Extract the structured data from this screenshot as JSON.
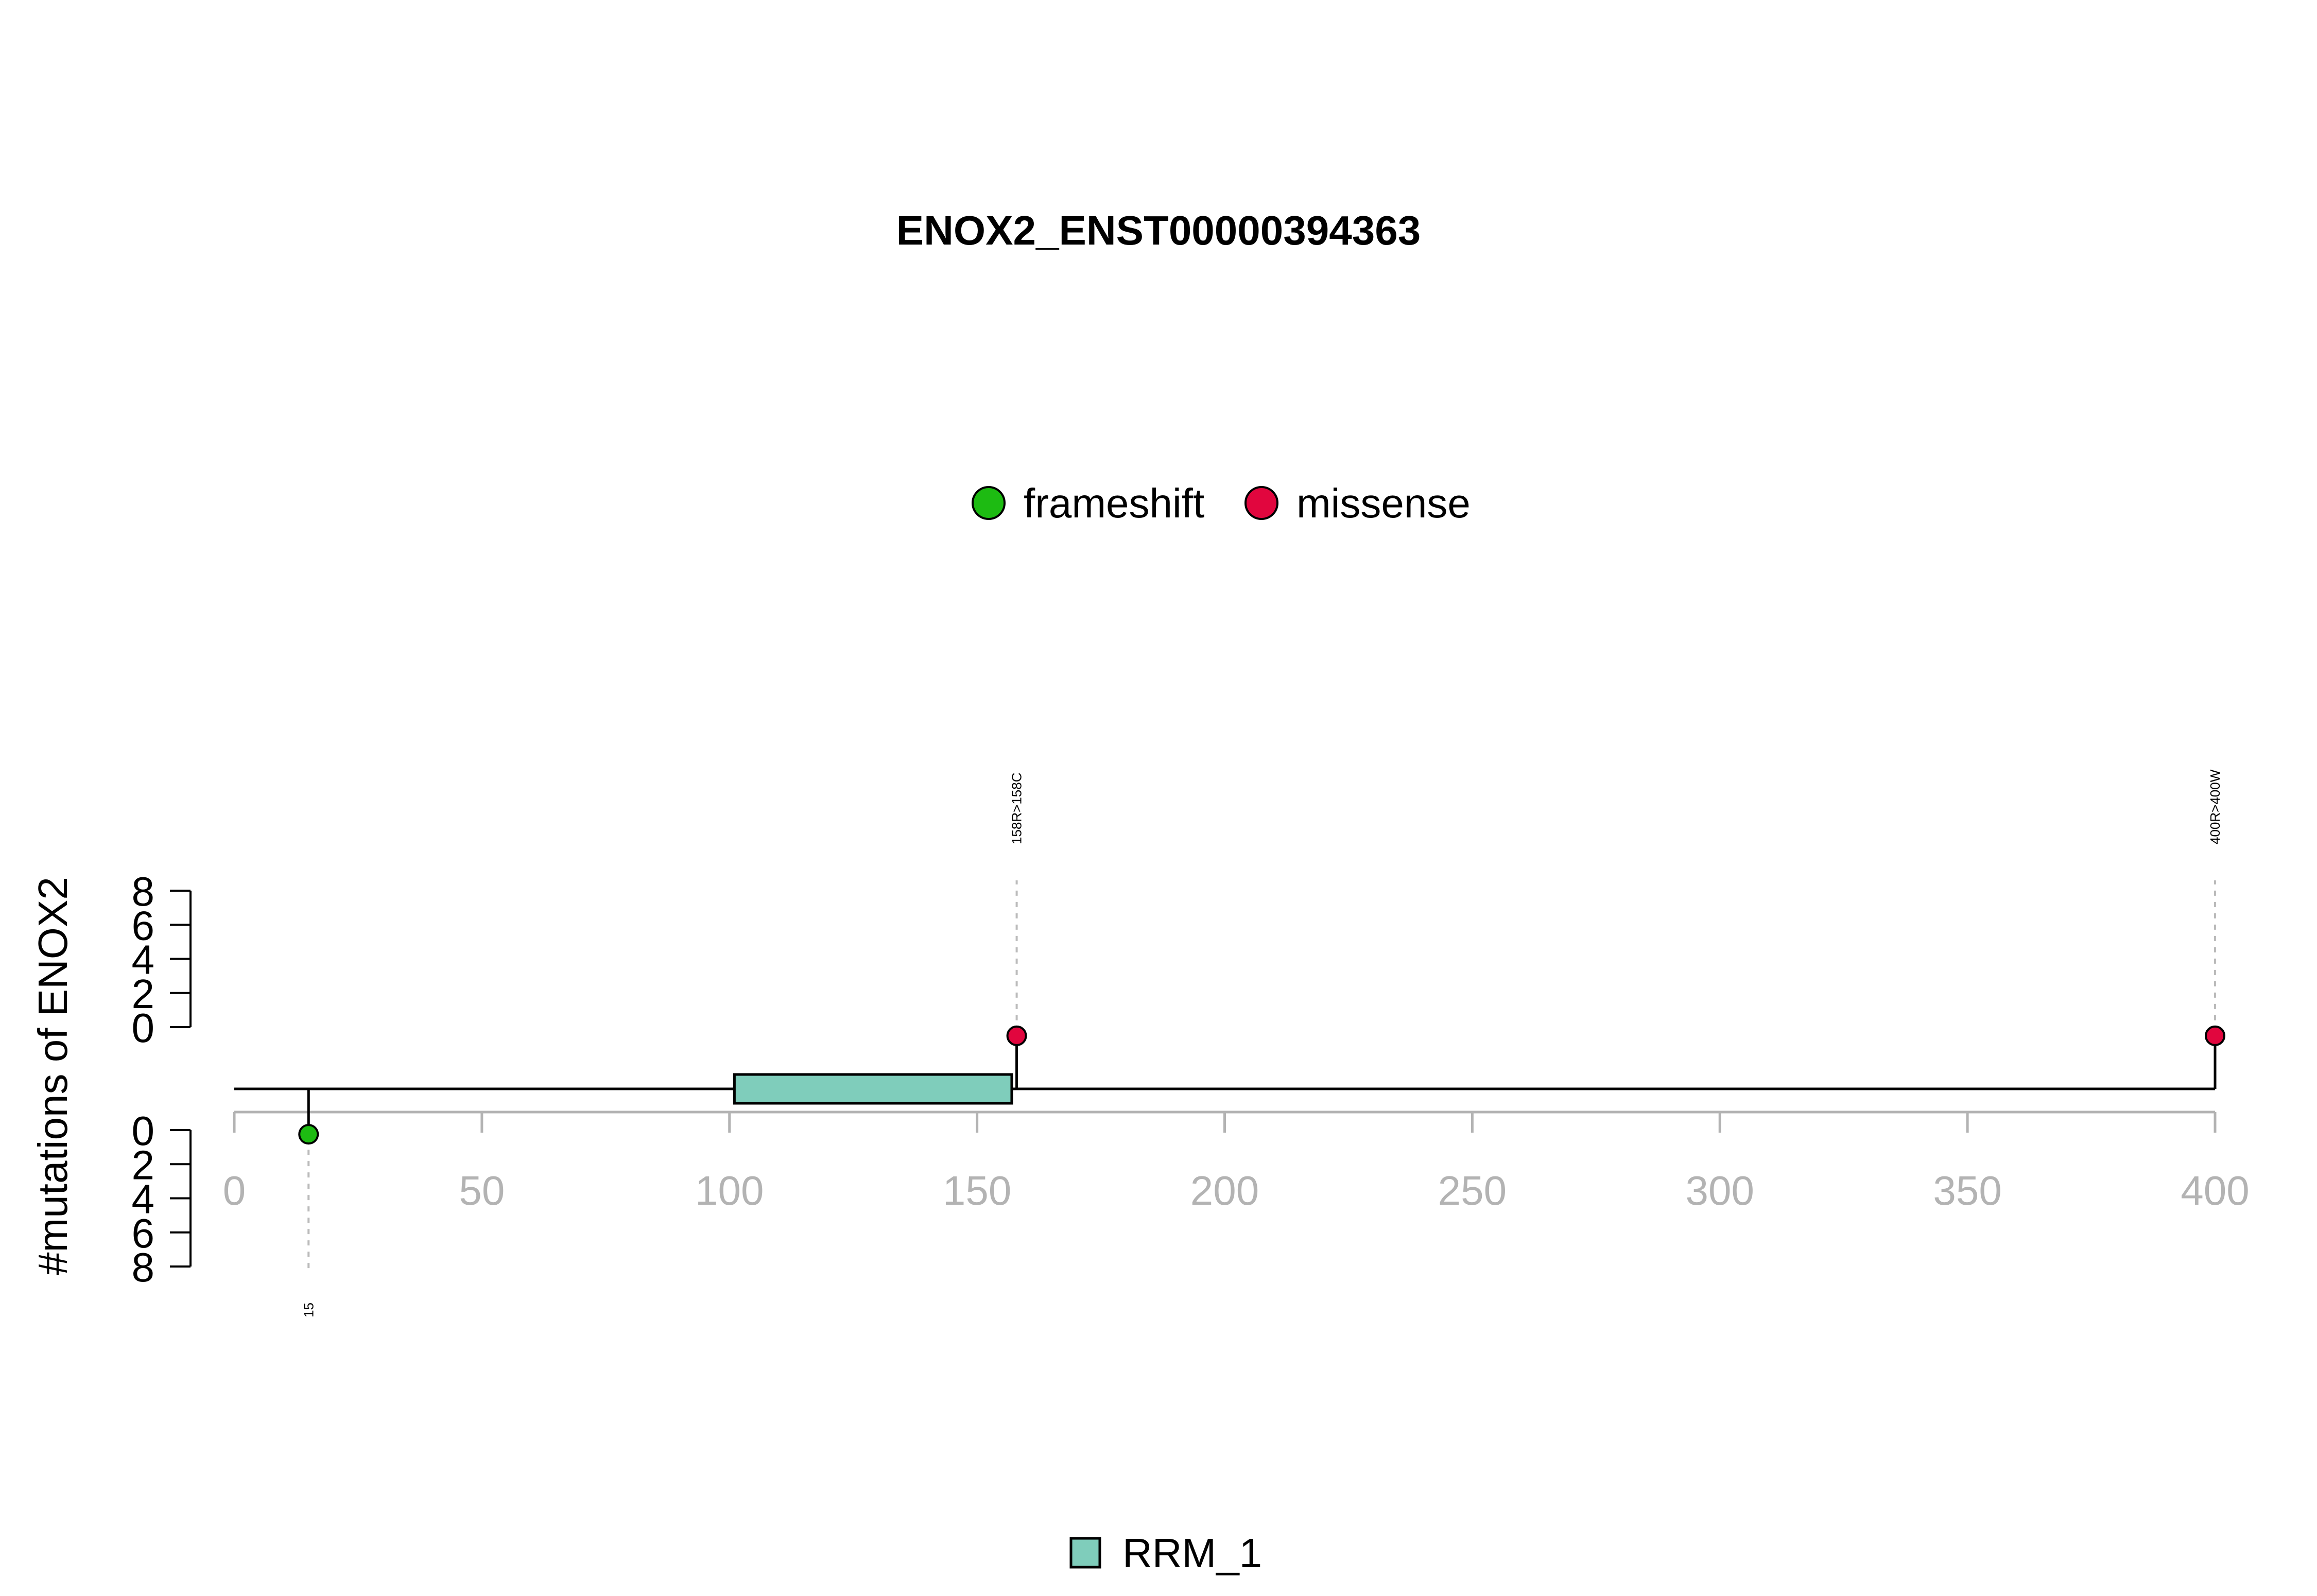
{
  "chart_data": {
    "type": "lollipop",
    "title": "ENOX2_ENST00000394363",
    "ylabel": "#mutations of ENOX2",
    "protein_length": 400,
    "xlim": [
      0,
      400
    ],
    "xticks": [
      0,
      50,
      100,
      150,
      200,
      250,
      300,
      350,
      400
    ],
    "ylim": [
      0,
      8
    ],
    "yticks": [
      0,
      2,
      4,
      6,
      8
    ],
    "legend_mutations": [
      {
        "label": "frameshift",
        "color": "#1dbb12"
      },
      {
        "label": "missense",
        "color": "#e1063e"
      }
    ],
    "domains": [
      {
        "name": "RRM_1",
        "start": 101,
        "end": 157,
        "color": "#7fcdbb"
      }
    ],
    "mutations": [
      {
        "position": 15,
        "count": 1,
        "type": "frameshift",
        "label": "15",
        "side": "bottom"
      },
      {
        "position": 158,
        "count": 1,
        "type": "missense",
        "label": "158R>158C",
        "side": "top"
      },
      {
        "position": 400,
        "count": 1,
        "type": "missense",
        "label": "400R>400W",
        "side": "top"
      }
    ]
  }
}
